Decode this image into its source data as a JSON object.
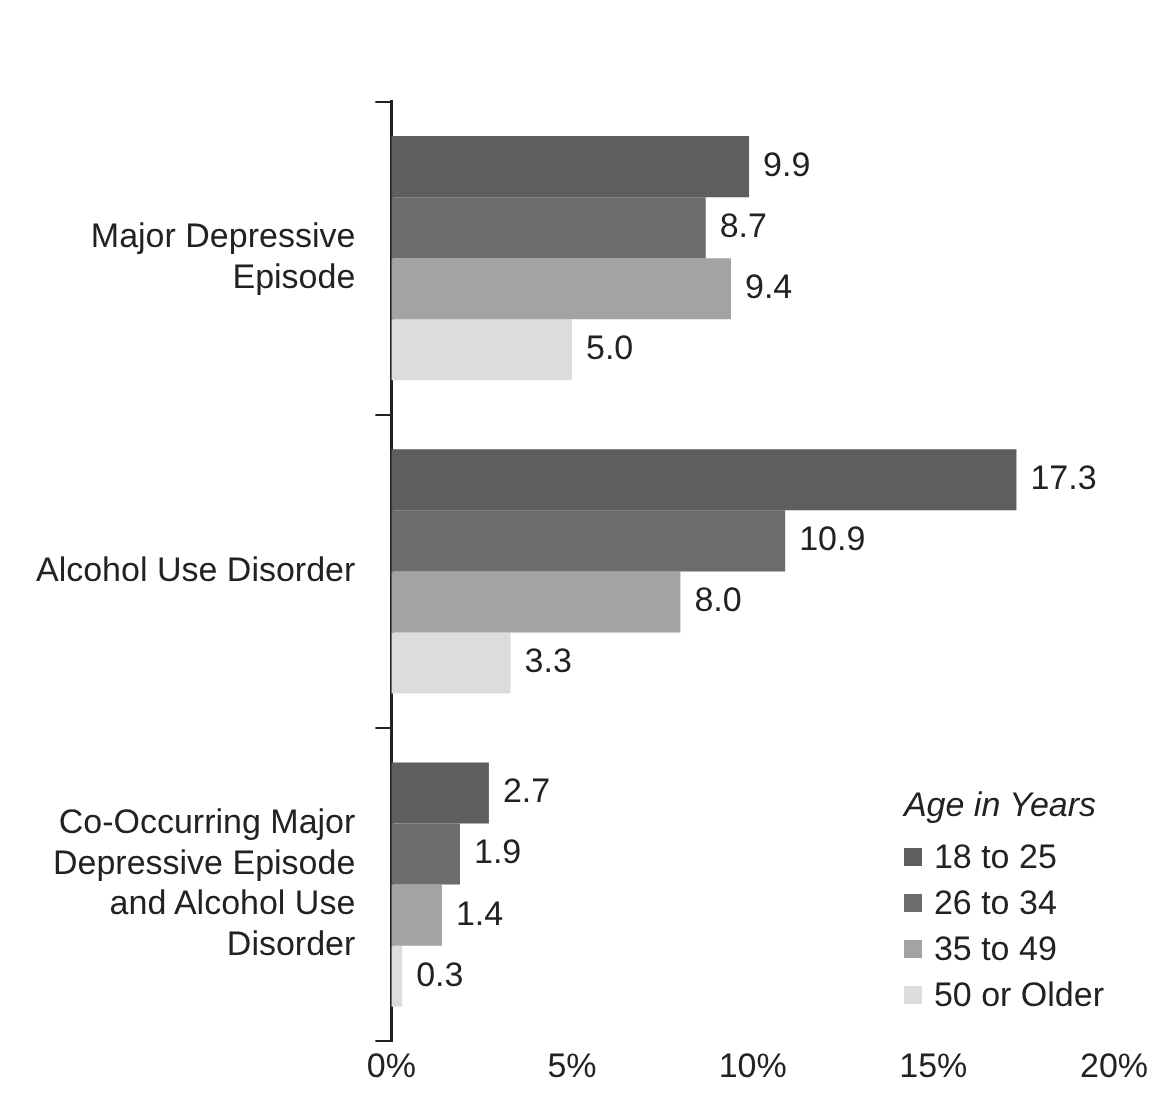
{
  "chart_data": {
    "type": "bar",
    "orientation": "horizontal",
    "categories": [
      "Major Depressive Episode",
      "Alcohol Use Disorder",
      "Co-Occurring Major Depressive Episode and Alcohol Use Disorder"
    ],
    "legend_title": "Age in Years",
    "legend": "bottom right",
    "grid": false,
    "xlim": [
      0,
      20
    ],
    "xticks": [
      {
        "value": 0,
        "label": "0%"
      },
      {
        "value": 5,
        "label": "5%"
      },
      {
        "value": 10,
        "label": "10%"
      },
      {
        "value": 15,
        "label": "15%"
      },
      {
        "value": 20,
        "label": "20%"
      }
    ],
    "series": [
      {
        "name": "18 to 25",
        "color": "#5e5e5e",
        "values": [
          9.9,
          17.3,
          2.7
        ],
        "value_labels": [
          "9.9",
          "17.3",
          "2.7"
        ]
      },
      {
        "name": "26 to 34",
        "color": "#6c6c6c",
        "values": [
          8.7,
          10.9,
          1.9
        ],
        "value_labels": [
          "8.7",
          "10.9",
          "1.9"
        ]
      },
      {
        "name": "35 to 49",
        "color": "#a3a3a3",
        "values": [
          9.4,
          8.0,
          1.4
        ],
        "value_labels": [
          "9.4",
          "8.0",
          "1.4"
        ]
      },
      {
        "name": "50 or Older",
        "color": "#dcdcdc",
        "values": [
          5.0,
          3.3,
          0.3
        ],
        "value_labels": [
          "5.0",
          "3.3",
          "0.3"
        ]
      }
    ]
  }
}
